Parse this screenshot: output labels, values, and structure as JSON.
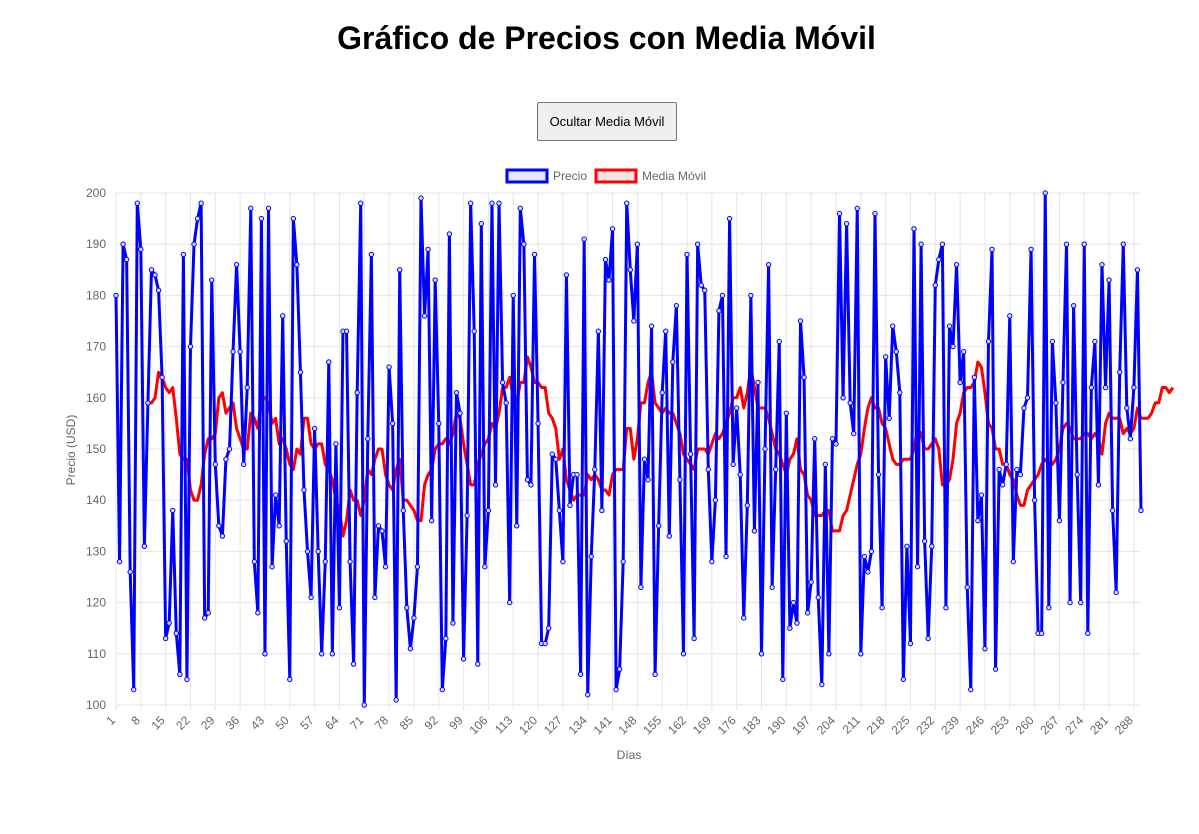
{
  "page": {
    "title": "Gráfico de Precios con Media Móvil"
  },
  "controls": {
    "toggle_label": "Ocultar Media Móvil"
  },
  "chart_data": {
    "type": "line",
    "title": "",
    "xlabel": "Días",
    "ylabel": "Precio (USD)",
    "ylim": [
      100,
      200
    ],
    "yticks": [
      100,
      110,
      120,
      130,
      140,
      150,
      160,
      170,
      180,
      190,
      200
    ],
    "xlim": [
      1,
      290
    ],
    "xticks": [
      1,
      8,
      15,
      22,
      29,
      36,
      43,
      50,
      57,
      64,
      71,
      78,
      85,
      92,
      99,
      106,
      113,
      120,
      127,
      134,
      141,
      148,
      155,
      162,
      169,
      176,
      183,
      190,
      197,
      204,
      211,
      218,
      225,
      232,
      239,
      246,
      253,
      260,
      267,
      274,
      281,
      288
    ],
    "grid": true,
    "legend_position": "top-center",
    "colors": {
      "price": "#0000ff",
      "ma": "#ff0000"
    },
    "series": [
      {
        "name": "Precio",
        "color": "#0000ff",
        "values": [
          180,
          128,
          190,
          187,
          126,
          103,
          198,
          189,
          131,
          159,
          185,
          184,
          181,
          164,
          113,
          116,
          138,
          114,
          106,
          188,
          105,
          170,
          190,
          195,
          198,
          117,
          118,
          183,
          147,
          135,
          133,
          148,
          150,
          169,
          186,
          169,
          147,
          162,
          197,
          128,
          118,
          195,
          110,
          197,
          127,
          141,
          135,
          176,
          132,
          105,
          195,
          186,
          165,
          142,
          130,
          121,
          154,
          130,
          110,
          128,
          167,
          110,
          151,
          119,
          173,
          173,
          128,
          108,
          161,
          198,
          100,
          152,
          188,
          121,
          135,
          134,
          127,
          166,
          155,
          101,
          185,
          138,
          119,
          111,
          117,
          127,
          199,
          176,
          189,
          136,
          183,
          155,
          103,
          113,
          192,
          116,
          161,
          157,
          109,
          137,
          198,
          173,
          108,
          194,
          127,
          138,
          198,
          143,
          198,
          163,
          159,
          120,
          180,
          135,
          197,
          190,
          144,
          143,
          188,
          155,
          112,
          112,
          115,
          149,
          148,
          138,
          128,
          184,
          139,
          145,
          145,
          106,
          191,
          102,
          129,
          146,
          173,
          138,
          187,
          183,
          193,
          103,
          107,
          128,
          198,
          185,
          175,
          190,
          123,
          148,
          144,
          174,
          106,
          135,
          161,
          173,
          133,
          167,
          178,
          144,
          110,
          188,
          149,
          113,
          190,
          182,
          181,
          146,
          128,
          140,
          177,
          180,
          129,
          195,
          147,
          158,
          145,
          117,
          139,
          180,
          134,
          163,
          110,
          150,
          186,
          123,
          146,
          171,
          105,
          157,
          115,
          120,
          116,
          175,
          164,
          118,
          124,
          152,
          121,
          104,
          147,
          110,
          152,
          151,
          196,
          160,
          194,
          159,
          153,
          197,
          110,
          129,
          126,
          130,
          196,
          145,
          119,
          168,
          156,
          174,
          169,
          161,
          105,
          131,
          112,
          193,
          127,
          190,
          132,
          113,
          131,
          182,
          187,
          190,
          119,
          174,
          170,
          186,
          163,
          169,
          123,
          103,
          164,
          136,
          141,
          111,
          171,
          189,
          107,
          146,
          143,
          147,
          176,
          128,
          146,
          145,
          158,
          160,
          189,
          140,
          114,
          114,
          200,
          119,
          171,
          159,
          136,
          163,
          190,
          120,
          178,
          145,
          120,
          190,
          114,
          162,
          171,
          143,
          186,
          162,
          183,
          138,
          122,
          165,
          190,
          158,
          152,
          162,
          185,
          138
        ]
      },
      {
        "name": "Media Móvil",
        "color": "#ff0000",
        "values": [
          null,
          null,
          null,
          null,
          null,
          null,
          null,
          null,
          null,
          159,
          159,
          160,
          165,
          164,
          162,
          161,
          162,
          156,
          149,
          148,
          148,
          142,
          140,
          140,
          143,
          149,
          152,
          152,
          153,
          160,
          161,
          157,
          158,
          159,
          154,
          152,
          150,
          150,
          157,
          156,
          154,
          160,
          160,
          159,
          155,
          156,
          151,
          152,
          150,
          147,
          146,
          150,
          149,
          156,
          156,
          151,
          150,
          151,
          151,
          147,
          146,
          144,
          140,
          138,
          133,
          136,
          142,
          140,
          140,
          137,
          140,
          146,
          145,
          148,
          150,
          150,
          145,
          143,
          142,
          146,
          148,
          140,
          140,
          139,
          138,
          136,
          136,
          143,
          145,
          146,
          150,
          151,
          151,
          152,
          151,
          153,
          157,
          156,
          151,
          147,
          143,
          143,
          147,
          149,
          151,
          152,
          155,
          154,
          157,
          162,
          162,
          164,
          160,
          159,
          163,
          163,
          168,
          166,
          163,
          163,
          162,
          162,
          157,
          156,
          154,
          148,
          150,
          144,
          142,
          140,
          141,
          141,
          141,
          145,
          144,
          145,
          144,
          142,
          142,
          141,
          145,
          146,
          146,
          146,
          154,
          154,
          148,
          152,
          159,
          159,
          163,
          165,
          159,
          158,
          157,
          158,
          157,
          157,
          155,
          153,
          149,
          148,
          147,
          146,
          150,
          150,
          150,
          149,
          151,
          153,
          152,
          153,
          155,
          157,
          160,
          160,
          162,
          158,
          161,
          166,
          162,
          158,
          158,
          158,
          156,
          153,
          150,
          149,
          147,
          145,
          148,
          149,
          152,
          146,
          145,
          141,
          140,
          137,
          137,
          137,
          138,
          138,
          134,
          134,
          134,
          137,
          138,
          141,
          144,
          147,
          149,
          154,
          158,
          160,
          158,
          158,
          155,
          154,
          151,
          148,
          147,
          147,
          148,
          148,
          148,
          150,
          154,
          153,
          150,
          150,
          151,
          152,
          150,
          143,
          143,
          144,
          148,
          155,
          157,
          161,
          162,
          162,
          163,
          167,
          166,
          161,
          155,
          154,
          150,
          150,
          147,
          147,
          145,
          144,
          141,
          139,
          139,
          142,
          143,
          144,
          145,
          147,
          148,
          147,
          147,
          148,
          150,
          154,
          155,
          154,
          152,
          152,
          152,
          153,
          153,
          152,
          153,
          152,
          149,
          155,
          157,
          156,
          156,
          156,
          153,
          154,
          153,
          154,
          158,
          156,
          156,
          156,
          157,
          159,
          159,
          162,
          162,
          161,
          162
        ]
      }
    ]
  }
}
